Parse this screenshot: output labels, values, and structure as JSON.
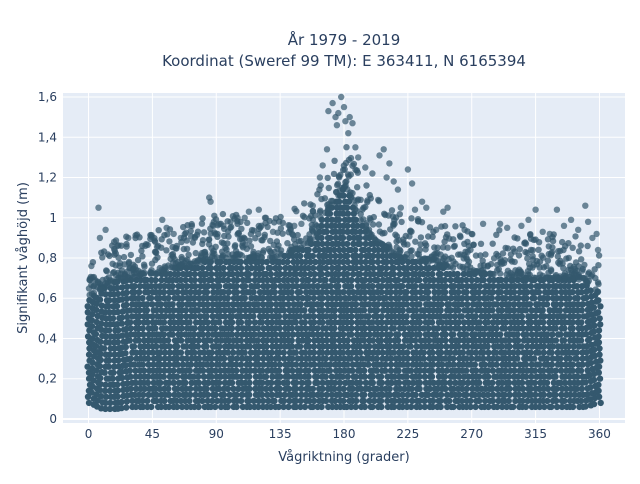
{
  "chart_data": {
    "type": "scatter",
    "title_line1": "År 1979 - 2019",
    "title_line2": "Koordinat (Sweref 99 TM): E 363411, N 6165394",
    "xlabel": "Vågriktning (grader)",
    "ylabel": "Signifikant våghöjd (m)",
    "xlim": [
      -18,
      378
    ],
    "ylim": [
      -0.02,
      1.62
    ],
    "x_ticks": [
      0,
      45,
      90,
      135,
      180,
      225,
      270,
      315,
      360
    ],
    "x_tick_labels": [
      "0",
      "45",
      "90",
      "135",
      "180",
      "225",
      "270",
      "315",
      "360"
    ],
    "y_ticks": [
      0,
      0.2,
      0.4,
      0.6,
      0.8,
      1.0,
      1.2,
      1.4,
      1.6
    ],
    "y_tick_labels": [
      "0",
      "0,2",
      "0,4",
      "0,6",
      "0,8",
      "1",
      "1,2",
      "1,4",
      "1,6"
    ],
    "grid": true,
    "marker_color": "#34586e",
    "plot_bg": "#e5ecf6",
    "series_envelope": {
      "x": [
        0,
        10,
        20,
        30,
        40,
        50,
        60,
        70,
        80,
        90,
        100,
        110,
        120,
        130,
        140,
        150,
        160,
        165,
        170,
        175,
        180,
        185,
        190,
        195,
        200,
        210,
        220,
        230,
        240,
        250,
        260,
        270,
        280,
        290,
        300,
        310,
        320,
        330,
        340,
        350,
        360
      ],
      "y_min": [
        0.08,
        0.05,
        0.05,
        0.06,
        0.06,
        0.06,
        0.06,
        0.06,
        0.06,
        0.06,
        0.06,
        0.06,
        0.06,
        0.06,
        0.06,
        0.06,
        0.06,
        0.06,
        0.06,
        0.06,
        0.06,
        0.06,
        0.06,
        0.06,
        0.06,
        0.06,
        0.06,
        0.06,
        0.06,
        0.06,
        0.06,
        0.06,
        0.06,
        0.06,
        0.06,
        0.06,
        0.06,
        0.06,
        0.06,
        0.06,
        0.08
      ],
      "y_dense_top": [
        0.6,
        0.65,
        0.7,
        0.7,
        0.72,
        0.72,
        0.75,
        0.76,
        0.78,
        0.8,
        0.8,
        0.8,
        0.8,
        0.8,
        0.82,
        0.85,
        0.9,
        1.0,
        1.05,
        1.1,
        1.15,
        1.1,
        1.0,
        0.95,
        0.9,
        0.85,
        0.8,
        0.8,
        0.78,
        0.75,
        0.75,
        0.73,
        0.72,
        0.72,
        0.7,
        0.7,
        0.7,
        0.7,
        0.7,
        0.68,
        0.62
      ]
    },
    "outliers": [
      {
        "x": 7,
        "y": 1.05
      },
      {
        "x": 2,
        "y": 0.76
      },
      {
        "x": 12,
        "y": 0.94
      },
      {
        "x": 8,
        "y": 0.9
      },
      {
        "x": 18,
        "y": 0.88
      },
      {
        "x": 28,
        "y": 0.9
      },
      {
        "x": 40,
        "y": 0.86
      },
      {
        "x": 52,
        "y": 0.99
      },
      {
        "x": 55,
        "y": 0.95
      },
      {
        "x": 60,
        "y": 0.92
      },
      {
        "x": 65,
        "y": 0.9
      },
      {
        "x": 75,
        "y": 0.9
      },
      {
        "x": 85,
        "y": 1.1
      },
      {
        "x": 86,
        "y": 1.08
      },
      {
        "x": 88,
        "y": 0.96
      },
      {
        "x": 92,
        "y": 0.97
      },
      {
        "x": 95,
        "y": 0.96
      },
      {
        "x": 100,
        "y": 0.98
      },
      {
        "x": 105,
        "y": 1.0
      },
      {
        "x": 110,
        "y": 1.0
      },
      {
        "x": 113,
        "y": 1.03
      },
      {
        "x": 120,
        "y": 1.04
      },
      {
        "x": 125,
        "y": 1.0
      },
      {
        "x": 130,
        "y": 0.93
      },
      {
        "x": 145,
        "y": 0.96
      },
      {
        "x": 150,
        "y": 0.97
      },
      {
        "x": 158,
        "y": 1.06
      },
      {
        "x": 163,
        "y": 1.2
      },
      {
        "x": 165,
        "y": 1.26
      },
      {
        "x": 168,
        "y": 1.34
      },
      {
        "x": 169,
        "y": 1.53
      },
      {
        "x": 172,
        "y": 1.57
      },
      {
        "x": 174,
        "y": 1.5
      },
      {
        "x": 175,
        "y": 1.46
      },
      {
        "x": 176,
        "y": 1.52
      },
      {
        "x": 178,
        "y": 1.6
      },
      {
        "x": 180,
        "y": 1.55
      },
      {
        "x": 181,
        "y": 1.48
      },
      {
        "x": 183,
        "y": 1.42
      },
      {
        "x": 184,
        "y": 1.5
      },
      {
        "x": 186,
        "y": 1.47
      },
      {
        "x": 188,
        "y": 1.35
      },
      {
        "x": 190,
        "y": 1.3
      },
      {
        "x": 195,
        "y": 1.25
      },
      {
        "x": 200,
        "y": 1.22
      },
      {
        "x": 205,
        "y": 1.31
      },
      {
        "x": 208,
        "y": 1.34
      },
      {
        "x": 212,
        "y": 1.27
      },
      {
        "x": 210,
        "y": 1.2
      },
      {
        "x": 215,
        "y": 1.18
      },
      {
        "x": 218,
        "y": 1.14
      },
      {
        "x": 220,
        "y": 1.05
      },
      {
        "x": 225,
        "y": 1.24
      },
      {
        "x": 228,
        "y": 1.17
      },
      {
        "x": 230,
        "y": 1.04
      },
      {
        "x": 235,
        "y": 1.08
      },
      {
        "x": 238,
        "y": 1.05
      },
      {
        "x": 245,
        "y": 0.94
      },
      {
        "x": 250,
        "y": 1.03
      },
      {
        "x": 253,
        "y": 1.05
      },
      {
        "x": 265,
        "y": 0.94
      },
      {
        "x": 270,
        "y": 0.92
      },
      {
        "x": 278,
        "y": 0.97
      },
      {
        "x": 290,
        "y": 0.97
      },
      {
        "x": 295,
        "y": 0.95
      },
      {
        "x": 305,
        "y": 0.96
      },
      {
        "x": 310,
        "y": 0.99
      },
      {
        "x": 315,
        "y": 1.04
      },
      {
        "x": 320,
        "y": 0.93
      },
      {
        "x": 325,
        "y": 0.92
      },
      {
        "x": 330,
        "y": 1.04
      },
      {
        "x": 335,
        "y": 0.96
      },
      {
        "x": 340,
        "y": 0.99
      },
      {
        "x": 345,
        "y": 0.94
      },
      {
        "x": 350,
        "y": 1.06
      },
      {
        "x": 352,
        "y": 0.98
      },
      {
        "x": 355,
        "y": 0.9
      },
      {
        "x": 358,
        "y": 0.92
      },
      {
        "x": 359,
        "y": 0.84
      }
    ]
  }
}
